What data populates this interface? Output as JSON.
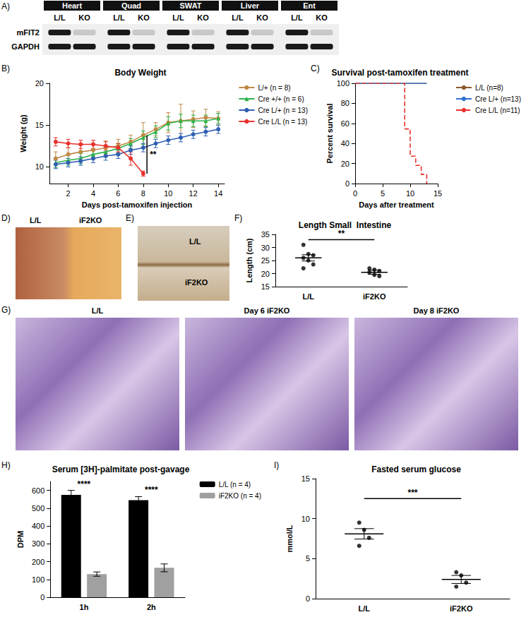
{
  "blot": {
    "panel_label": "A)",
    "tissues": [
      "Heart",
      "Quad",
      "SWAT",
      "Liver",
      "Ent"
    ],
    "lanes": [
      "L/L",
      "KO"
    ],
    "rows": [
      "mFIT2",
      "GAPDH"
    ]
  },
  "photos": [
    {
      "panel_label": "D)",
      "labels": [
        "L/L",
        "iF2KO"
      ]
    },
    {
      "panel_label": "E)",
      "labels": [
        "L/L",
        "iF2KO"
      ]
    },
    {
      "panel_label": "G)",
      "labels": [
        "L/L",
        "Day 6 iF2KO",
        "Day 8 iF2KO"
      ]
    }
  ],
  "chart_data": [
    {
      "panel_label": "B)",
      "type": "line",
      "title": "Body Weight",
      "x_label": "Days post-tamoxifen injection",
      "y_label": "Weight (g)",
      "x": [
        1,
        2,
        3,
        4,
        5,
        6,
        7,
        8,
        9,
        10,
        11,
        12,
        13,
        14
      ],
      "xlim": [
        0.5,
        14.5
      ],
      "xticks": [
        2,
        4,
        6,
        8,
        10,
        12,
        14
      ],
      "ylim": [
        8,
        20
      ],
      "yticks": [
        10,
        15,
        20
      ],
      "legend": "right",
      "series": [
        {
          "name": "L/+ (n = 8)",
          "color": "#c08a45",
          "marker": "circle",
          "values": [
            11.0,
            11.5,
            11.8,
            12.0,
            12.3,
            12.5,
            13.0,
            13.8,
            14.5,
            15.3,
            15.5,
            15.7,
            15.9,
            15.8
          ],
          "errors": [
            0.8,
            0.8,
            0.8,
            0.8,
            0.8,
            0.8,
            0.8,
            1.5,
            0.8,
            1.2,
            2.0,
            1.0,
            1.0,
            0.8
          ]
        },
        {
          "name": "Cre +/+ (n = 6)",
          "color": "#2db34a",
          "marker": "triangle",
          "values": [
            10.5,
            10.8,
            11.0,
            11.5,
            11.8,
            12.2,
            12.8,
            13.5,
            14.2,
            15.2,
            15.5,
            15.5,
            15.5,
            15.8
          ],
          "errors": [
            0.6,
            0.6,
            0.6,
            0.6,
            0.6,
            0.6,
            0.6,
            0.8,
            0.7,
            0.8,
            0.8,
            0.7,
            0.7,
            0.6
          ]
        },
        {
          "name": "Cre L/+ (n = 13)",
          "color": "#2f5fb3",
          "marker": "circle",
          "values": [
            10.3,
            10.5,
            10.7,
            11.0,
            11.3,
            11.5,
            12.0,
            12.3,
            12.8,
            13.2,
            13.5,
            13.9,
            14.2,
            14.5
          ],
          "errors": [
            0.5,
            0.5,
            0.5,
            0.5,
            0.5,
            0.5,
            0.5,
            0.5,
            0.5,
            0.5,
            0.5,
            0.5,
            0.5,
            0.5
          ]
        },
        {
          "name": "Cre L/L (n = 13)",
          "color": "#e8322d",
          "marker": "circle",
          "values": [
            13.0,
            12.8,
            12.7,
            12.7,
            12.5,
            12.3,
            11.0,
            9.2,
            null,
            null,
            null,
            null,
            null,
            null
          ],
          "errors": [
            0.5,
            0.5,
            0.5,
            0.5,
            0.5,
            0.5,
            0.8,
            0.3,
            null,
            null,
            null,
            null,
            null,
            null
          ]
        }
      ],
      "annotations": [
        {
          "text": "**",
          "x": 8.3,
          "y_from": 9.2,
          "y_to": 13.8
        }
      ]
    },
    {
      "panel_label": "C)",
      "type": "step",
      "title": "Survival post-tamoxifen treatment",
      "x_label": "Days after treatment",
      "y_label": "Percent survival",
      "xlim": [
        0,
        15
      ],
      "xticks": [
        0,
        5,
        10,
        15
      ],
      "ylim": [
        0,
        100
      ],
      "yticks": [
        0,
        20,
        40,
        60,
        80,
        100
      ],
      "legend": "right",
      "series": [
        {
          "name": "L/L (n=8)",
          "color": "#8b5a2b",
          "line_style": "solid",
          "x": [
            0,
            13
          ],
          "values": [
            100,
            100
          ]
        },
        {
          "name": "Cre L/+ (n=13)",
          "color": "#2f6fd0",
          "line_style": "solid",
          "x": [
            0,
            13
          ],
          "values": [
            100,
            100
          ]
        },
        {
          "name": "Cre L/L (n=11)",
          "color": "#e8322d",
          "line_style": "dashed",
          "x": [
            0,
            9,
            10,
            11,
            12,
            13
          ],
          "values": [
            100,
            54.5,
            27.3,
            18.2,
            9.1,
            0
          ]
        }
      ]
    },
    {
      "panel_label": "F)",
      "type": "scatter",
      "title": "Length Small  Intestine",
      "y_label": "Length (cm)",
      "color": "#000000",
      "categories": [
        "L/L",
        "iF2KO"
      ],
      "ylim": [
        15,
        35
      ],
      "yticks": [
        15,
        20,
        25,
        30,
        35
      ],
      "points": [
        [
          31,
          27.5,
          27,
          26,
          25,
          23.5,
          22
        ],
        [
          22,
          21.5,
          21,
          20.5,
          19.5,
          19
        ]
      ],
      "mean": [
        26,
        20.5
      ],
      "sem": [
        1.2,
        0.8
      ],
      "annotations": [
        {
          "text": "**",
          "y": 33
        }
      ]
    },
    {
      "panel_label": "H)",
      "type": "bar",
      "title": "Serum [3H]-palmitate post-gavage",
      "y_label": "DPM",
      "categories": [
        "1h",
        "2h"
      ],
      "ylim": [
        0,
        650
      ],
      "yticks": [
        0,
        100,
        200,
        300,
        400,
        500,
        600
      ],
      "legend": "right",
      "series": [
        {
          "name": "L/L (n = 4)",
          "color": "#000000",
          "values": [
            575,
            545
          ],
          "errors": [
            25,
            20
          ]
        },
        {
          "name": "iF2KO (n = 4)",
          "color": "#a0a0a0",
          "values": [
            130,
            165
          ],
          "errors": [
            12,
            22
          ]
        }
      ],
      "annotations": [
        {
          "text": "****",
          "category": "1h",
          "y": 612
        },
        {
          "text": "****",
          "category": "2h",
          "y": 580
        }
      ]
    },
    {
      "panel_label": "I)",
      "type": "scatter",
      "title": "Fasted serum glucose",
      "y_label": "mmol/L",
      "color": "#000000",
      "categories": [
        "L/L",
        "iF2KO"
      ],
      "ylim": [
        0,
        15
      ],
      "yticks": [
        0,
        5,
        10,
        15
      ],
      "points": [
        [
          9.5,
          8.6,
          7.6,
          6.6
        ],
        [
          3.3,
          2.9,
          2.0,
          1.5
        ]
      ],
      "mean": [
        8.1,
        2.4
      ],
      "sem": [
        0.65,
        0.5
      ],
      "annotations": [
        {
          "text": "***",
          "y": 12.5
        }
      ]
    }
  ]
}
